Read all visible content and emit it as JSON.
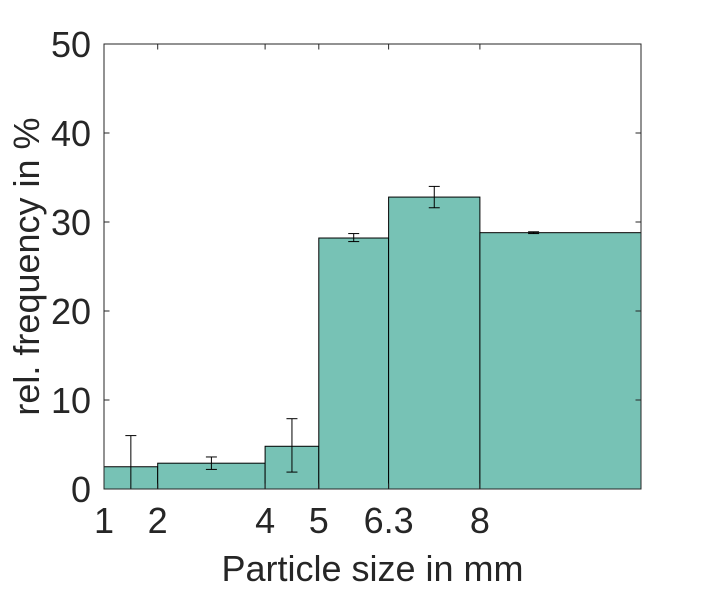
{
  "chart_data": {
    "type": "bar",
    "title": "",
    "xlabel": "Particle size in mm",
    "ylabel": "rel. frequency in %",
    "xlim": [
      1,
      11
    ],
    "ylim": [
      0,
      50
    ],
    "x_ticks": [
      {
        "value": 1,
        "label": "1"
      },
      {
        "value": 2,
        "label": "2"
      },
      {
        "value": 4,
        "label": "4"
      },
      {
        "value": 5,
        "label": "5"
      },
      {
        "value": 6.3,
        "label": "6.3"
      },
      {
        "value": 8,
        "label": "8"
      }
    ],
    "y_ticks": [
      {
        "value": 0,
        "label": "0"
      },
      {
        "value": 10,
        "label": "10"
      },
      {
        "value": 20,
        "label": "20"
      },
      {
        "value": 30,
        "label": "30"
      },
      {
        "value": 40,
        "label": "40"
      },
      {
        "value": 50,
        "label": "50"
      }
    ],
    "bins": [
      {
        "x0": 1,
        "x1": 2,
        "value": 2.5,
        "err_low": 0,
        "err_high": 6.0,
        "err_x": 1.5
      },
      {
        "x0": 2,
        "x1": 4,
        "value": 2.9,
        "err_low": 2.2,
        "err_high": 3.6,
        "err_x": 3.0
      },
      {
        "x0": 4,
        "x1": 5,
        "value": 4.8,
        "err_low": 1.9,
        "err_high": 7.9,
        "err_x": 4.5
      },
      {
        "x0": 5,
        "x1": 6.3,
        "value": 28.2,
        "err_low": 27.8,
        "err_high": 28.7,
        "err_x": 5.65
      },
      {
        "x0": 6.3,
        "x1": 8,
        "value": 32.8,
        "err_low": 31.6,
        "err_high": 34.0,
        "err_x": 7.15
      },
      {
        "x0": 8,
        "x1": 11,
        "value": 28.8,
        "err_low": 28.7,
        "err_high": 28.9,
        "err_x": 9.0
      }
    ],
    "bar_color": "#77c2b5",
    "edge_color": "#000000",
    "grid": false,
    "legend": "none"
  }
}
